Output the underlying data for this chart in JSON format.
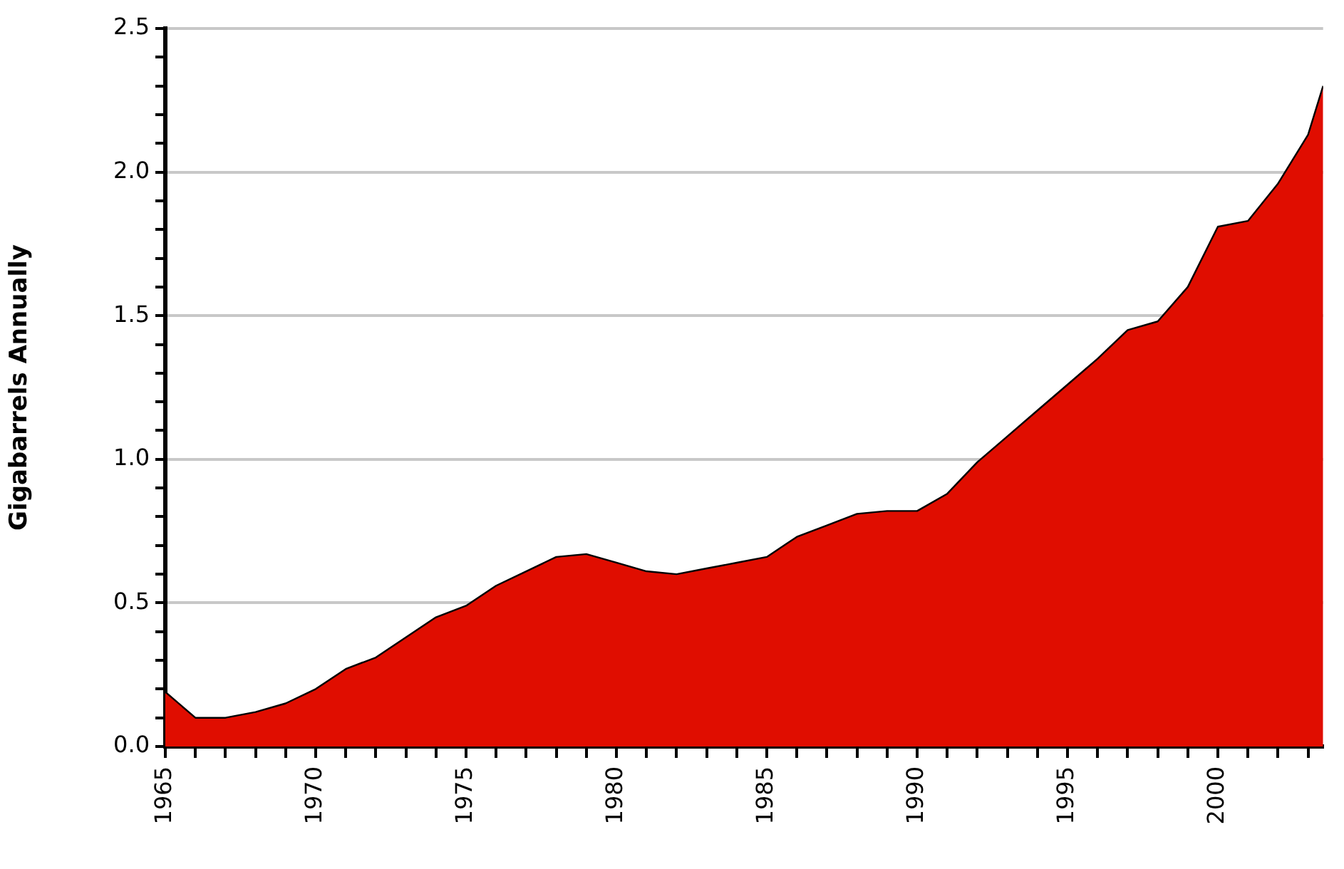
{
  "chart_data": {
    "type": "area",
    "ylabel": "Gigabarrels Annually",
    "x": [
      1965,
      1966,
      1967,
      1968,
      1969,
      1970,
      1971,
      1972,
      1973,
      1974,
      1975,
      1976,
      1977,
      1978,
      1979,
      1980,
      1981,
      1982,
      1983,
      1984,
      1985,
      1986,
      1987,
      1988,
      1989,
      1990,
      1991,
      1992,
      1993,
      1994,
      1995,
      1996,
      1997,
      1998,
      1999,
      2000,
      2001,
      2002,
      2003,
      2003.5
    ],
    "series": [
      {
        "color": "#e00d00",
        "values": [
          0.19,
          0.1,
          0.1,
          0.12,
          0.15,
          0.2,
          0.27,
          0.31,
          0.38,
          0.45,
          0.49,
          0.56,
          0.61,
          0.66,
          0.67,
          0.64,
          0.61,
          0.6,
          0.62,
          0.64,
          0.66,
          0.73,
          0.77,
          0.81,
          0.82,
          0.82,
          0.88,
          0.99,
          1.08,
          1.17,
          1.26,
          1.35,
          1.45,
          1.48,
          1.6,
          1.81,
          1.83,
          1.96,
          2.13,
          2.3
        ]
      }
    ],
    "xlim": [
      1965,
      2003.5
    ],
    "xticks": [
      1965,
      {
        "value": 1966,
        "label": null
      },
      {
        "value": 1967,
        "label": null
      },
      {
        "value": 1968,
        "label": null
      },
      {
        "value": 1969,
        "label": null
      },
      1970,
      {
        "value": 1971,
        "label": null
      },
      {
        "value": 1972,
        "label": null
      },
      {
        "value": 1973,
        "label": null
      },
      {
        "value": 1974,
        "label": null
      },
      1975,
      {
        "value": 1976,
        "label": null
      },
      {
        "value": 1977,
        "label": null
      },
      {
        "value": 1978,
        "label": null
      },
      {
        "value": 1979,
        "label": null
      },
      1980,
      {
        "value": 1981,
        "label": null
      },
      {
        "value": 1982,
        "label": null
      },
      {
        "value": 1983,
        "label": null
      },
      {
        "value": 1984,
        "label": null
      },
      1985,
      {
        "value": 1986,
        "label": null
      },
      {
        "value": 1987,
        "label": null
      },
      {
        "value": 1988,
        "label": null
      },
      {
        "value": 1989,
        "label": null
      },
      1990,
      {
        "value": 1991,
        "label": null
      },
      {
        "value": 1992,
        "label": null
      },
      {
        "value": 1993,
        "label": null
      },
      {
        "value": 1994,
        "label": null
      },
      1995,
      {
        "value": 1996,
        "label": null
      },
      {
        "value": 1997,
        "label": null
      },
      {
        "value": 1998,
        "label": null
      },
      {
        "value": 1999,
        "label": null
      },
      2000,
      {
        "value": 2001,
        "label": null
      },
      {
        "value": 2002,
        "label": null
      },
      {
        "value": 2003,
        "label": null
      }
    ],
    "ylim": [
      0,
      2.5
    ],
    "yticks": [
      {
        "value": 0,
        "label": "0.0"
      },
      {
        "value": 0.1,
        "label": null
      },
      {
        "value": 0.2,
        "label": null
      },
      {
        "value": 0.3,
        "label": null
      },
      {
        "value": 0.4,
        "label": null
      },
      0.5,
      {
        "value": 0.6,
        "label": null
      },
      {
        "value": 0.7,
        "label": null
      },
      {
        "value": 0.8,
        "label": null
      },
      {
        "value": 0.9,
        "label": null
      },
      {
        "value": 1,
        "label": "1.0"
      },
      {
        "value": 1.1,
        "label": null
      },
      {
        "value": 1.2,
        "label": null
      },
      {
        "value": 1.3,
        "label": null
      },
      {
        "value": 1.4,
        "label": null
      },
      1.5,
      {
        "value": 1.6,
        "label": null
      },
      {
        "value": 1.7,
        "label": null
      },
      {
        "value": 1.8,
        "label": null
      },
      {
        "value": 1.9,
        "label": null
      },
      {
        "value": 2,
        "label": "2.0"
      },
      {
        "value": 2.1,
        "label": null
      },
      {
        "value": 2.2,
        "label": null
      },
      {
        "value": 2.3,
        "label": null
      },
      {
        "value": 2.4,
        "label": null
      },
      2.5
    ],
    "grid": "y",
    "legend": false,
    "marker": "none",
    "line_style": "solid"
  }
}
